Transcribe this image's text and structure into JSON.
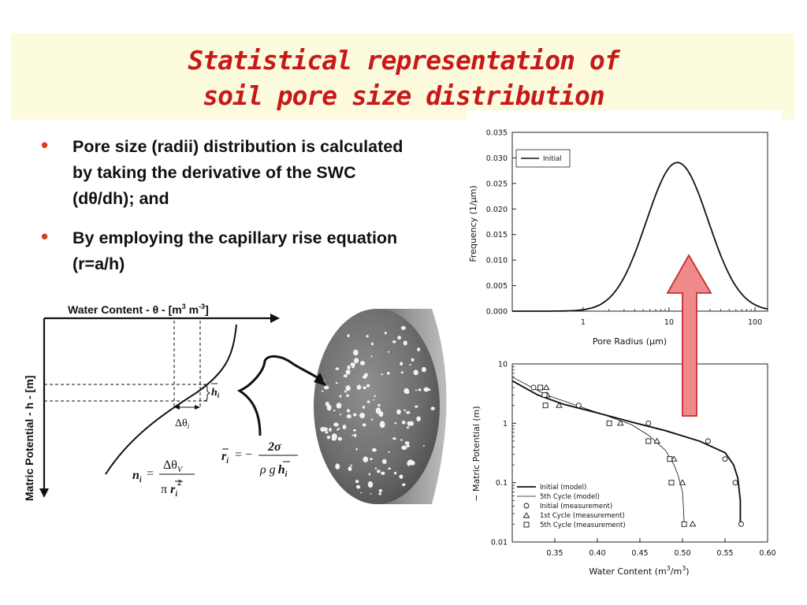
{
  "title": {
    "line1": "Statistical representation of",
    "line2": "soil pore size distribution"
  },
  "bullets": [
    {
      "text": "Pore size (radii) distribution is calculated by taking the derivative of the SWC (dθ/dh); and"
    },
    {
      "text": "By employing the capillary rise equation (r=a/h)"
    }
  ],
  "sketch": {
    "x_axis_label_main": "Water Content - θ - [m",
    "x_axis_label_sup1": "3",
    "x_axis_label_mid": " m",
    "x_axis_label_sup2": "-3",
    "x_axis_label_end": "]",
    "y_axis_label": "Matric Potential - h - [m]",
    "h_label": "h",
    "h_sub": "i",
    "dtheta_label": "Δθ",
    "dtheta_sub": "i"
  },
  "equations": {
    "n_lhs": "n",
    "n_lhs_sub": "i",
    "n_num": "Δθ",
    "n_num_sub": "V",
    "n_den_pi": "π",
    "n_den_r": "r",
    "n_den_sub": "i",
    "n_den_sup": "2",
    "r_lhs": "r",
    "r_lhs_sub": "i",
    "r_num": "2σ",
    "r_den_rho_g": "ρ g",
    "r_den_h": "h",
    "r_den_sub": "i"
  },
  "colors": {
    "title": "#c8191a",
    "title_band": "#fdfbdd",
    "bullet_dot": "#e03a16",
    "arrow_fill": "#f08a8a",
    "arrow_stroke": "#c42f2f"
  },
  "chart_data": [
    {
      "type": "line",
      "x_scale": "log",
      "xlabel": "Pore Radius (μm)",
      "ylabel": "Frequency (1/μm)",
      "xlim": [
        0.15,
        140
      ],
      "ylim": [
        0,
        0.035
      ],
      "x_ticks": [
        "1",
        "10",
        "100"
      ],
      "y_ticks": [
        "0.000",
        "0.005",
        "0.010",
        "0.015",
        "0.020",
        "0.025",
        "0.030",
        "0.035"
      ],
      "legend_position": "top-left",
      "series": [
        {
          "name": "Initial",
          "x": [
            0.15,
            0.5,
            1,
            2,
            3,
            5,
            7,
            10,
            12.5,
            15,
            20,
            30,
            50,
            80,
            140
          ],
          "y": [
            0.0,
            0.0,
            0.0003,
            0.0022,
            0.0055,
            0.0137,
            0.0205,
            0.0268,
            0.0291,
            0.0282,
            0.0243,
            0.0158,
            0.0066,
            0.0022,
            0.0003
          ]
        }
      ]
    },
    {
      "type": "scatter",
      "x_scale": "linear",
      "y_scale": "log",
      "xlabel": "Water Content (m3/m3)",
      "ylabel": "− Matric Potential (m)",
      "xlim": [
        0.3,
        0.6
      ],
      "ylim": [
        0.01,
        10
      ],
      "x_ticks": [
        "0.35",
        "0.40",
        "0.45",
        "0.50",
        "0.55",
        "0.60"
      ],
      "y_ticks": [
        "0.01",
        "0.1",
        "1",
        "10"
      ],
      "legend_position": "bottom-left",
      "series": [
        {
          "name": "Initial (model)",
          "kind": "line",
          "x": [
            0.3,
            0.33,
            0.36,
            0.4,
            0.44,
            0.48,
            0.52,
            0.55,
            0.56,
            0.565,
            0.568,
            0.568
          ],
          "y": [
            5.2,
            3.0,
            2.1,
            1.5,
            1.05,
            0.75,
            0.5,
            0.32,
            0.2,
            0.12,
            0.05,
            0.02
          ]
        },
        {
          "name": "5th Cycle (model)",
          "kind": "line",
          "x": [
            0.3,
            0.34,
            0.38,
            0.41,
            0.44,
            0.46,
            0.48,
            0.49,
            0.495,
            0.5,
            0.501,
            0.502
          ],
          "y": [
            6.0,
            3.0,
            1.9,
            1.35,
            0.95,
            0.63,
            0.35,
            0.2,
            0.13,
            0.07,
            0.04,
            0.02
          ]
        },
        {
          "name": "Initial (measurement)",
          "kind": "circle",
          "x": [
            0.325,
            0.34,
            0.378,
            0.46,
            0.53,
            0.55,
            0.562,
            0.569
          ],
          "y": [
            4.0,
            3.0,
            2.0,
            1.0,
            0.5,
            0.25,
            0.1,
            0.02
          ]
        },
        {
          "name": "1st Cycle (measurement)",
          "kind": "triangle",
          "x": [
            0.34,
            0.341,
            0.355,
            0.427,
            0.47,
            0.49,
            0.5,
            0.512
          ],
          "y": [
            4.0,
            3.0,
            2.0,
            1.0,
            0.5,
            0.25,
            0.1,
            0.02
          ]
        },
        {
          "name": "5th Cycle (measurement)",
          "kind": "square",
          "x": [
            0.333,
            0.338,
            0.339,
            0.414,
            0.46,
            0.485,
            0.487,
            0.502
          ],
          "y": [
            4.0,
            3.0,
            2.0,
            1.0,
            0.5,
            0.25,
            0.1,
            0.02
          ]
        }
      ]
    }
  ]
}
